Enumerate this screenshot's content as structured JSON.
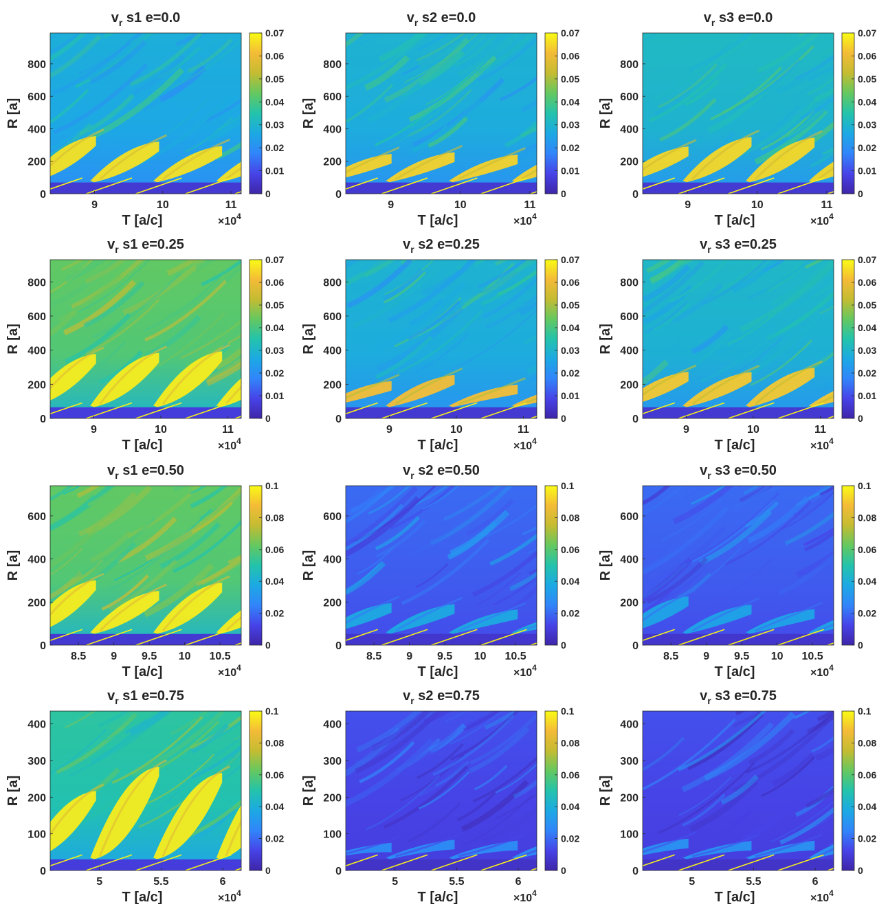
{
  "figure": {
    "colormap": [
      "#3e26a8",
      "#4743e8",
      "#3185fa",
      "#1ca9e4",
      "#23c3ac",
      "#64c860",
      "#c4bc32",
      "#f4bb37",
      "#f9fb15"
    ],
    "xlabel": "T [a/c]",
    "ylabel": "R [a]",
    "x_multiplier_base": "×10",
    "x_multiplier_exp": "4"
  },
  "chart_data": [
    {
      "type": "heatmap",
      "title_var": "v",
      "title_sub": "r",
      "title_rest": "s1  e=0.0",
      "xlim": [
        8.35,
        11.15
      ],
      "ylim": [
        0,
        990
      ],
      "xticks": [
        "9",
        "10",
        "11"
      ],
      "yticks": [
        "0",
        "200",
        "400",
        "600",
        "800"
      ],
      "clim": [
        0,
        0.07
      ],
      "cticks": [
        "0",
        "0.01",
        "0.02",
        "0.03",
        "0.04",
        "0.05",
        "0.06",
        "0.07"
      ],
      "xtick_values": [
        9,
        10,
        11
      ],
      "ytick_values": [
        0,
        200,
        400,
        600,
        800
      ],
      "ctick_values": [
        0,
        0.01,
        0.02,
        0.03,
        0.04,
        0.05,
        0.06,
        0.07
      ],
      "bg": 0.4,
      "bands": 0.95,
      "band_top": 0.33,
      "dark": 0.08
    },
    {
      "type": "heatmap",
      "title_var": "v",
      "title_sub": "r",
      "title_rest": "s2  e=0.0",
      "xlim": [
        8.35,
        11.1
      ],
      "ylim": [
        0,
        990
      ],
      "xticks": [
        "9",
        "10",
        "11"
      ],
      "yticks": [
        "0",
        "200",
        "400",
        "600",
        "800"
      ],
      "clim": [
        0,
        0.07
      ],
      "cticks": [
        "0",
        "0.01",
        "0.02",
        "0.03",
        "0.04",
        "0.05",
        "0.06",
        "0.07"
      ],
      "xtick_values": [
        9,
        10,
        11
      ],
      "ytick_values": [
        0,
        200,
        400,
        600,
        800
      ],
      "ctick_values": [
        0,
        0.01,
        0.02,
        0.03,
        0.04,
        0.05,
        0.06,
        0.07
      ],
      "bg": 0.42,
      "bands": 0.92,
      "band_top": 0.3,
      "dark": 0.08
    },
    {
      "type": "heatmap",
      "title_var": "v",
      "title_sub": "r",
      "title_rest": "s3  e=0.0",
      "xlim": [
        8.35,
        11.1
      ],
      "ylim": [
        0,
        990
      ],
      "xticks": [
        "9",
        "10",
        "11"
      ],
      "yticks": [
        "0",
        "200",
        "400",
        "600",
        "800"
      ],
      "clim": [
        0,
        0.07
      ],
      "cticks": [
        "0",
        "0.01",
        "0.02",
        "0.03",
        "0.04",
        "0.05",
        "0.06",
        "0.07"
      ],
      "xtick_values": [
        9,
        10,
        11
      ],
      "ytick_values": [
        0,
        200,
        400,
        600,
        800
      ],
      "ctick_values": [
        0,
        0.01,
        0.02,
        0.03,
        0.04,
        0.05,
        0.06,
        0.07
      ],
      "bg": 0.45,
      "bands": 0.93,
      "band_top": 0.34,
      "dark": 0.08
    },
    {
      "type": "heatmap",
      "title_var": "v",
      "title_sub": "r",
      "title_rest": "s1  e=0.25",
      "xlim": [
        8.35,
        11.2
      ],
      "ylim": [
        0,
        930
      ],
      "xticks": [
        "9",
        "10",
        "11"
      ],
      "yticks": [
        "0",
        "200",
        "400",
        "600",
        "800"
      ],
      "clim": [
        0,
        0.07
      ],
      "cticks": [
        "0",
        "0.01",
        "0.02",
        "0.03",
        "0.04",
        "0.05",
        "0.06",
        "0.07"
      ],
      "xtick_values": [
        9,
        10,
        11
      ],
      "ytick_values": [
        0,
        200,
        400,
        600,
        800
      ],
      "ctick_values": [
        0,
        0.01,
        0.02,
        0.03,
        0.04,
        0.05,
        0.06,
        0.07
      ],
      "bg": 0.62,
      "bands": 0.97,
      "band_top": 0.45,
      "dark": 0.1
    },
    {
      "type": "heatmap",
      "title_var": "v",
      "title_sub": "r",
      "title_rest": "s2  e=0.25",
      "xlim": [
        8.35,
        11.2
      ],
      "ylim": [
        0,
        930
      ],
      "xticks": [
        "9",
        "10",
        "11"
      ],
      "yticks": [
        "0",
        "200",
        "400",
        "600",
        "800"
      ],
      "clim": [
        0,
        0.07
      ],
      "cticks": [
        "0",
        "0.01",
        "0.02",
        "0.03",
        "0.04",
        "0.05",
        "0.06",
        "0.07"
      ],
      "xtick_values": [
        9,
        10,
        11
      ],
      "ytick_values": [
        0,
        200,
        400,
        600,
        800
      ],
      "ctick_values": [
        0,
        0.01,
        0.02,
        0.03,
        0.04,
        0.05,
        0.06,
        0.07
      ],
      "bg": 0.42,
      "bands": 0.88,
      "band_top": 0.25,
      "dark": 0.08
    },
    {
      "type": "heatmap",
      "title_var": "v",
      "title_sub": "r",
      "title_rest": "s3  e=0.25",
      "xlim": [
        8.35,
        11.2
      ],
      "ylim": [
        0,
        930
      ],
      "xticks": [
        "9",
        "10",
        "11"
      ],
      "yticks": [
        "0",
        "200",
        "400",
        "600",
        "800"
      ],
      "clim": [
        0,
        0.07
      ],
      "cticks": [
        "0",
        "0.01",
        "0.02",
        "0.03",
        "0.04",
        "0.05",
        "0.06",
        "0.07"
      ],
      "xtick_values": [
        9,
        10,
        11
      ],
      "ytick_values": [
        0,
        200,
        400,
        600,
        800
      ],
      "ctick_values": [
        0,
        0.01,
        0.02,
        0.03,
        0.04,
        0.05,
        0.06,
        0.07
      ],
      "bg": 0.44,
      "bands": 0.9,
      "band_top": 0.3,
      "dark": 0.08
    },
    {
      "type": "heatmap",
      "title_var": "v",
      "title_sub": "r",
      "title_rest": "s1  e=0.50",
      "xlim": [
        8.1,
        10.8
      ],
      "ylim": [
        0,
        740
      ],
      "xticks": [
        "8.5",
        "9",
        "9.5",
        "10",
        "10.5"
      ],
      "yticks": [
        "0",
        "200",
        "400",
        "600"
      ],
      "clim": [
        0,
        0.1
      ],
      "cticks": [
        "0",
        "0.02",
        "0.04",
        "0.06",
        "0.08",
        "0.1"
      ],
      "xtick_values": [
        8.5,
        9,
        9.5,
        10,
        10.5
      ],
      "ytick_values": [
        0,
        200,
        400,
        600
      ],
      "ctick_values": [
        0,
        0.02,
        0.04,
        0.06,
        0.08,
        0.1
      ],
      "bg": 0.62,
      "bands": 0.97,
      "band_top": 0.4,
      "dark": 0.08
    },
    {
      "type": "heatmap",
      "title_var": "v",
      "title_sub": "r",
      "title_rest": "s2  e=0.50",
      "xlim": [
        8.1,
        10.8
      ],
      "ylim": [
        0,
        740
      ],
      "xticks": [
        "8.5",
        "9",
        "9.5",
        "10",
        "10.5"
      ],
      "yticks": [
        "0",
        "200",
        "400",
        "600"
      ],
      "clim": [
        0,
        0.1
      ],
      "cticks": [
        "0",
        "0.02",
        "0.04",
        "0.06",
        "0.08",
        "0.1"
      ],
      "xtick_values": [
        8.5,
        9,
        9.5,
        10,
        10.5
      ],
      "ytick_values": [
        0,
        200,
        400,
        600
      ],
      "ctick_values": [
        0,
        0.02,
        0.04,
        0.06,
        0.08,
        0.1
      ],
      "bg": 0.2,
      "bands": 0.38,
      "band_top": 0.25,
      "dark": 0.07
    },
    {
      "type": "heatmap",
      "title_var": "v",
      "title_sub": "r",
      "title_rest": "s3  e=0.50",
      "xlim": [
        8.1,
        10.8
      ],
      "ylim": [
        0,
        740
      ],
      "xticks": [
        "8.5",
        "9",
        "9.5",
        "10",
        "10.5"
      ],
      "yticks": [
        "0",
        "200",
        "400",
        "600"
      ],
      "clim": [
        0,
        0.1
      ],
      "cticks": [
        "0",
        "0.02",
        "0.04",
        "0.06",
        "0.08",
        "0.1"
      ],
      "xtick_values": [
        8.5,
        9,
        9.5,
        10,
        10.5
      ],
      "ytick_values": [
        0,
        200,
        400,
        600
      ],
      "ctick_values": [
        0,
        0.02,
        0.04,
        0.06,
        0.08,
        0.1
      ],
      "bg": 0.2,
      "bands": 0.36,
      "band_top": 0.28,
      "dark": 0.07
    },
    {
      "type": "heatmap",
      "title_var": "v",
      "title_sub": "r",
      "title_rest": "s1  e=0.75",
      "xlim": [
        4.6,
        6.15
      ],
      "ylim": [
        0,
        435
      ],
      "xticks": [
        "5",
        "5.5",
        "6"
      ],
      "yticks": [
        "0",
        "100",
        "200",
        "300",
        "400"
      ],
      "clim": [
        0,
        0.1
      ],
      "cticks": [
        "0",
        "0.02",
        "0.04",
        "0.06",
        "0.08",
        "0.1"
      ],
      "xtick_values": [
        5,
        5.5,
        6
      ],
      "ytick_values": [
        0,
        100,
        200,
        300,
        400
      ],
      "ctick_values": [
        0,
        0.02,
        0.04,
        0.06,
        0.08,
        0.1
      ],
      "bg": 0.52,
      "bands": 0.97,
      "band_top": 0.6,
      "dark": 0.1
    },
    {
      "type": "heatmap",
      "title_var": "v",
      "title_sub": "r",
      "title_rest": "s2  e=0.75",
      "xlim": [
        4.6,
        6.15
      ],
      "ylim": [
        0,
        435
      ],
      "xticks": [
        "5",
        "5.5",
        "6"
      ],
      "yticks": [
        "0",
        "100",
        "200",
        "300",
        "400"
      ],
      "clim": [
        0,
        0.1
      ],
      "cticks": [
        "0",
        "0.02",
        "0.04",
        "0.06",
        "0.08",
        "0.1"
      ],
      "xtick_values": [
        5,
        5.5,
        6
      ],
      "ytick_values": [
        0,
        100,
        200,
        300,
        400
      ],
      "ctick_values": [
        0,
        0.02,
        0.04,
        0.06,
        0.08,
        0.1
      ],
      "bg": 0.15,
      "bands": 0.28,
      "band_top": 0.2,
      "dark": 0.06
    },
    {
      "type": "heatmap",
      "title_var": "v",
      "title_sub": "r",
      "title_rest": "s3  e=0.75",
      "xlim": [
        4.6,
        6.15
      ],
      "ylim": [
        0,
        435
      ],
      "xticks": [
        "5",
        "5.5",
        "6"
      ],
      "yticks": [
        "0",
        "100",
        "200",
        "300",
        "400"
      ],
      "clim": [
        0,
        0.1
      ],
      "cticks": [
        "0",
        "0.02",
        "0.04",
        "0.06",
        "0.08",
        "0.1"
      ],
      "xtick_values": [
        5,
        5.5,
        6
      ],
      "ytick_values": [
        0,
        100,
        200,
        300,
        400
      ],
      "ctick_values": [
        0,
        0.02,
        0.04,
        0.06,
        0.08,
        0.1
      ],
      "bg": 0.15,
      "bands": 0.3,
      "band_top": 0.22,
      "dark": 0.06
    }
  ]
}
